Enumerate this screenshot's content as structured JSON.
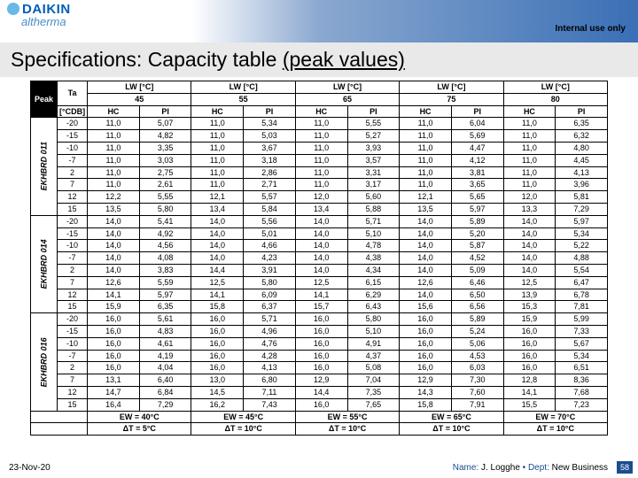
{
  "header": {
    "brand": "DAIKIN",
    "sub": "altherma",
    "tag": "Internal use only"
  },
  "title": {
    "a": "Specifications: Capacity table ",
    "b": "(peak values)"
  },
  "tbl": {
    "peak": "Peak",
    "ta": "Ta",
    "cdb": "[°CDB]",
    "lw": [
      {
        "t": "LW [°C]",
        "v": "45"
      },
      {
        "t": "LW [°C]",
        "v": "55"
      },
      {
        "t": "LW [°C]",
        "v": "65"
      },
      {
        "t": "LW [°C]",
        "v": "75"
      },
      {
        "t": "LW [°C]",
        "v": "80"
      }
    ],
    "sub": [
      "HC",
      "PI"
    ],
    "models": [
      {
        "name": "EKHBRD 011",
        "temps": [
          "-20",
          "-15",
          "-10",
          "-7",
          "2",
          "7",
          "12",
          "15"
        ],
        "rows": [
          [
            "11,0",
            "5,07",
            "11,0",
            "5,34",
            "11,0",
            "5,55",
            "11,0",
            "6,04",
            "11,0",
            "6,35"
          ],
          [
            "11,0",
            "4,82",
            "11,0",
            "5,03",
            "11,0",
            "5,27",
            "11,0",
            "5,69",
            "11,0",
            "6,32"
          ],
          [
            "11,0",
            "3,35",
            "11,0",
            "3,67",
            "11,0",
            "3,93",
            "11,0",
            "4,47",
            "11,0",
            "4,80"
          ],
          [
            "11,0",
            "3,03",
            "11,0",
            "3,18",
            "11,0",
            "3,57",
            "11,0",
            "4,12",
            "11,0",
            "4,45"
          ],
          [
            "11,0",
            "2,75",
            "11,0",
            "2,86",
            "11,0",
            "3,31",
            "11,0",
            "3,81",
            "11,0",
            "4,13"
          ],
          [
            "11,0",
            "2,61",
            "11,0",
            "2,71",
            "11,0",
            "3,17",
            "11,0",
            "3,65",
            "11,0",
            "3,96"
          ],
          [
            "12,2",
            "5,55",
            "12,1",
            "5,57",
            "12,0",
            "5,60",
            "12,1",
            "5,65",
            "12,0",
            "5,81"
          ],
          [
            "13,5",
            "5,80",
            "13,4",
            "5,84",
            "13,4",
            "5,88",
            "13,5",
            "5,97",
            "13,3",
            "7,29"
          ]
        ]
      },
      {
        "name": "EKHBRD 014",
        "temps": [
          "-20",
          "-15",
          "-10",
          "-7",
          "2",
          "7",
          "12",
          "15"
        ],
        "rows": [
          [
            "14,0",
            "5,41",
            "14,0",
            "5,56",
            "14,0",
            "5,71",
            "14,0",
            "5,89",
            "14,0",
            "5,97"
          ],
          [
            "14,0",
            "4,92",
            "14,0",
            "5,01",
            "14,0",
            "5,10",
            "14,0",
            "5,20",
            "14,0",
            "5,34"
          ],
          [
            "14,0",
            "4,56",
            "14,0",
            "4,66",
            "14,0",
            "4,78",
            "14,0",
            "5,87",
            "14,0",
            "5,22"
          ],
          [
            "14,0",
            "4,08",
            "14,0",
            "4,23",
            "14,0",
            "4,38",
            "14,0",
            "4,52",
            "14,0",
            "4,88"
          ],
          [
            "14,0",
            "3,83",
            "14,4",
            "3,91",
            "14,0",
            "4,34",
            "14,0",
            "5,09",
            "14,0",
            "5,54"
          ],
          [
            "12,6",
            "5,59",
            "12,5",
            "5,80",
            "12,5",
            "6,15",
            "12,6",
            "6,46",
            "12,5",
            "6,47"
          ],
          [
            "14,1",
            "5,97",
            "14,1",
            "6,09",
            "14,1",
            "6,29",
            "14,0",
            "6,50",
            "13,9",
            "6,78"
          ],
          [
            "15,9",
            "6,35",
            "15,8",
            "6,37",
            "15,7",
            "6,43",
            "15,6",
            "6,56",
            "15,3",
            "7,81"
          ]
        ]
      },
      {
        "name": "EKHBRD 016",
        "temps": [
          "-20",
          "-15",
          "-10",
          "-7",
          "2",
          "7",
          "12",
          "15"
        ],
        "rows": [
          [
            "16,0",
            "5,61",
            "16,0",
            "5,71",
            "16,0",
            "5,80",
            "16,0",
            "5,89",
            "15,9",
            "5,99"
          ],
          [
            "16,0",
            "4,83",
            "16,0",
            "4,96",
            "16,0",
            "5,10",
            "16,0",
            "5,24",
            "16,0",
            "7,33"
          ],
          [
            "16,0",
            "4,61",
            "16,0",
            "4,76",
            "16,0",
            "4,91",
            "16,0",
            "5,06",
            "16,0",
            "5,67"
          ],
          [
            "16,0",
            "4,19",
            "16,0",
            "4,28",
            "16,0",
            "4,37",
            "16,0",
            "4,53",
            "16,0",
            "5,34"
          ],
          [
            "16,0",
            "4,04",
            "16,0",
            "4,13",
            "16,0",
            "5,08",
            "16,0",
            "6,03",
            "16,0",
            "6,51"
          ],
          [
            "13,1",
            "6,40",
            "13,0",
            "6,80",
            "12,9",
            "7,04",
            "12,9",
            "7,30",
            "12,8",
            "8,36"
          ],
          [
            "14,7",
            "6,84",
            "14,5",
            "7,11",
            "14,4",
            "7,35",
            "14,3",
            "7,60",
            "14,1",
            "7,68"
          ],
          [
            "16,4",
            "7,29",
            "16,2",
            "7,43",
            "16,0",
            "7,65",
            "15,8",
            "7,91",
            "15,5",
            "7,23"
          ]
        ]
      }
    ],
    "foot1": [
      "EW = 40°C",
      "EW = 45°C",
      "EW = 55°C",
      "EW = 65°C",
      "EW = 70°C"
    ],
    "foot2": [
      "ΔT = 5°C",
      "ΔT = 10°C",
      "ΔT = 10°C",
      "ΔT = 10°C",
      "ΔT = 10°C"
    ]
  },
  "footer": {
    "date": "23-Nov-20",
    "n1": "Name: ",
    "n2": "J. Logghe",
    "d1": " • Dept: ",
    "d2": "New Business",
    "page": "58"
  }
}
